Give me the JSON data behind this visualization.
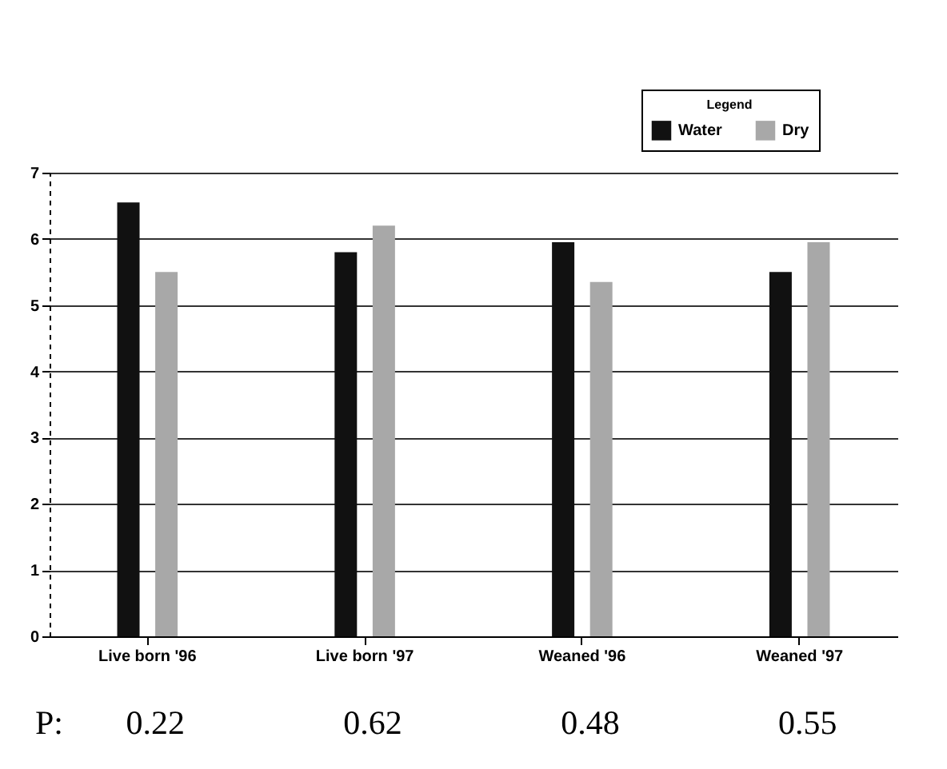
{
  "chart_data": {
    "type": "bar",
    "categories": [
      "Live born '96",
      "Live born '97",
      "Weaned '96",
      "Weaned '97"
    ],
    "series": [
      {
        "name": "Water",
        "color": "#111111",
        "values": [
          6.55,
          5.8,
          5.95,
          5.5
        ]
      },
      {
        "name": "Dry",
        "color": "#a8a8a8",
        "values": [
          5.5,
          6.2,
          5.35,
          5.95
        ]
      }
    ],
    "ylim": [
      0,
      7
    ],
    "yticks": [
      0,
      1,
      2,
      3,
      4,
      5,
      6,
      7
    ],
    "grid": "y",
    "legend": "top right",
    "legend_title": "Legend",
    "annotations": [
      "P:",
      "0.22",
      "0.62",
      "0.48",
      "0.55"
    ]
  }
}
